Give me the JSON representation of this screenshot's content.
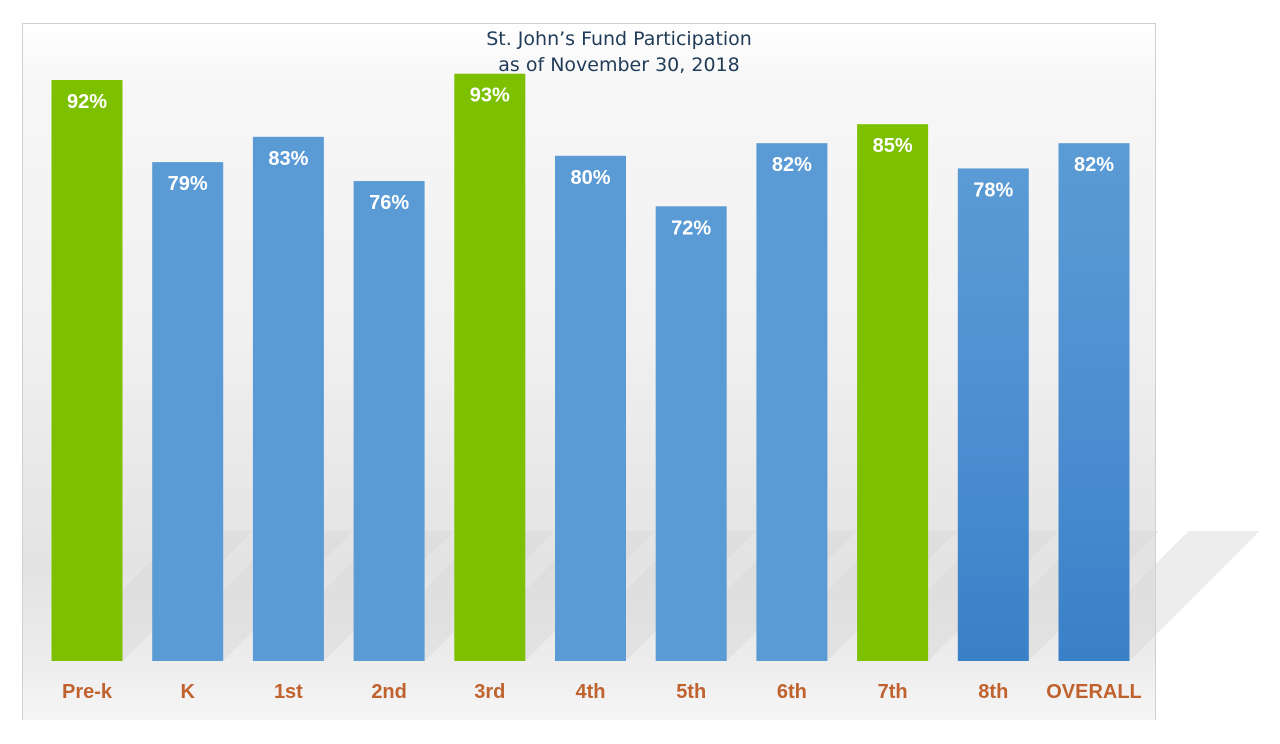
{
  "chart_data": {
    "type": "bar",
    "title": "St. John’s Fund Participation",
    "subtitle": "as of November 30, 2018",
    "categories": [
      "Pre-k",
      "K",
      "1st",
      "2nd",
      "3rd",
      "4th",
      "5th",
      "6th",
      "7th",
      "8th",
      "OVERALL"
    ],
    "values": [
      92,
      79,
      83,
      76,
      93,
      80,
      72,
      82,
      85,
      78,
      82
    ],
    "data_labels": [
      "92%",
      "79%",
      "83%",
      "76%",
      "93%",
      "80%",
      "72%",
      "82%",
      "85%",
      "78%",
      "82%"
    ],
    "highlighted": [
      true,
      false,
      false,
      false,
      true,
      false,
      false,
      false,
      true,
      false,
      false
    ],
    "ylim": [
      0,
      100
    ],
    "grid": false,
    "legend": "none",
    "colors": {
      "highlight": "#7dc000",
      "normal": "#5b9bd5",
      "normal_dark": "#3a80c8",
      "category_text": "#c0622e",
      "title_text": "#1f3b57"
    }
  }
}
